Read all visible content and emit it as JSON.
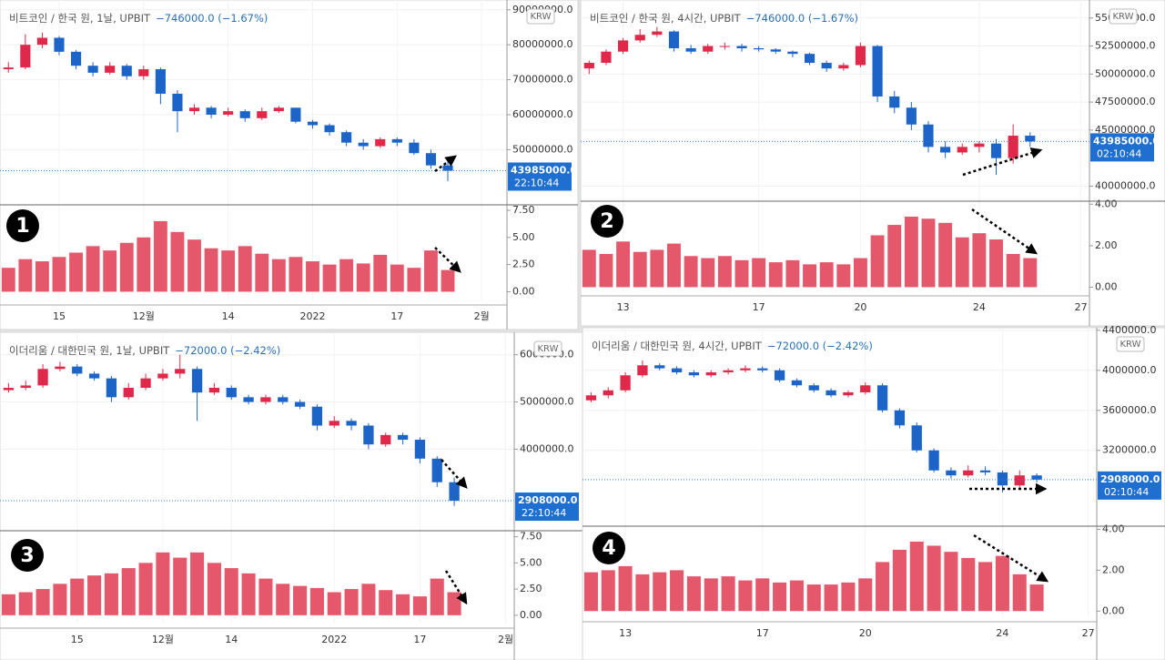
{
  "chart_data": [
    {
      "type": "candlestick",
      "title": "비트코인 / 한국 원, 1날, UPBIT",
      "change": "−746000.0 (−1.67%)",
      "badge": "1",
      "currency": "KRW",
      "timer": "22:10:44",
      "colors": {
        "up": "#e0294a",
        "down": "#1c64c8",
        "volume": "#e5586c"
      },
      "categories": [
        null,
        null,
        null,
        "15",
        null,
        null,
        null,
        null,
        "12월",
        null,
        null,
        null,
        null,
        "14",
        null,
        null,
        null,
        null,
        "2022",
        null,
        null,
        null,
        null,
        "17",
        null,
        null,
        null,
        null,
        "2월",
        null
      ],
      "open": [
        73000000.0,
        73500000.0,
        80000000.0,
        82000000.0,
        78000000.0,
        74000000.0,
        72000000.0,
        74000000.0,
        71000000.0,
        73000000.0,
        66000000.0,
        61000000.0,
        62000000.0,
        60000000.0,
        61000000.0,
        59000000.0,
        61000000.0,
        62000000.0,
        58000000.0,
        57000000.0,
        55000000.0,
        52000000.0,
        51000000.0,
        53000000.0,
        52000000.0,
        49000000.0,
        45500000.0,
        null,
        null,
        null
      ],
      "high": [
        75000000.0,
        83000000.0,
        83500000.0,
        82500000.0,
        78500000.0,
        75000000.0,
        75000000.0,
        74500000.0,
        74000000.0,
        73500000.0,
        67000000.0,
        63000000.0,
        62500000.0,
        62000000.0,
        61500000.0,
        62000000.0,
        62500000.0,
        62000000.0,
        58500000.0,
        57500000.0,
        55500000.0,
        53000000.0,
        53500000.0,
        53500000.0,
        53000000.0,
        50000000.0,
        47000000.0,
        null,
        null,
        null
      ],
      "low": [
        72000000.0,
        73000000.0,
        79000000.0,
        77000000.0,
        73000000.0,
        71000000.0,
        71500000.0,
        70000000.0,
        70000000.0,
        63000000.0,
        55000000.0,
        60000000.0,
        59000000.0,
        59500000.0,
        58000000.0,
        58500000.0,
        60500000.0,
        57500000.0,
        56000000.0,
        54000000.0,
        51000000.0,
        50000000.0,
        50500000.0,
        51000000.0,
        48500000.0,
        44500000.0,
        41000000.0,
        null,
        null,
        null
      ],
      "close": [
        73500000.0,
        80000000.0,
        82000000.0,
        78000000.0,
        74000000.0,
        72000000.0,
        74000000.0,
        71000000.0,
        73000000.0,
        66000000.0,
        61000000.0,
        62000000.0,
        60000000.0,
        61000000.0,
        59000000.0,
        61000000.0,
        62000000.0,
        58000000.0,
        57000000.0,
        55000000.0,
        52000000.0,
        51000000.0,
        53000000.0,
        52000000.0,
        49000000.0,
        45500000.0,
        43985000.0,
        null,
        null,
        null
      ],
      "ylim": [
        35000000,
        91500000
      ],
      "yticks": [
        {
          "value": 50000000,
          "label": "50000000.0"
        },
        {
          "value": 60000000,
          "label": "60000000.0"
        },
        {
          "value": 70000000,
          "label": "70000000.0"
        },
        {
          "value": 80000000,
          "label": "80000000.0"
        },
        {
          "value": 90000000,
          "label": "90000000.0"
        }
      ],
      "last_price": {
        "value": 43985000,
        "label": "43985000.0"
      },
      "volume": {
        "values": [
          2.2,
          3.0,
          2.8,
          3.2,
          3.6,
          4.2,
          3.8,
          4.5,
          5.0,
          6.5,
          5.5,
          4.8,
          4.0,
          3.8,
          4.2,
          3.5,
          3.0,
          3.2,
          2.8,
          2.5,
          3.0,
          2.6,
          3.4,
          2.5,
          2.2,
          3.8,
          2.0,
          null,
          null,
          null
        ],
        "ylim": [
          -0.8,
          8
        ],
        "yticks": [
          {
            "value": 0,
            "label": "0.00"
          },
          {
            "value": 2.5,
            "label": "2.50"
          },
          {
            "value": 5,
            "label": "5.00"
          },
          {
            "value": 7.5,
            "label": "7.50"
          }
        ]
      }
    },
    {
      "type": "candlestick",
      "title": "비트코인 / 한국 원, 4시간, UPBIT",
      "change": "−746000.0 (−1.67%)",
      "badge": "2",
      "currency": "KRW",
      "timer": "02:10:44",
      "colors": {
        "up": "#e0294a",
        "down": "#1c64c8",
        "volume": "#e5586c"
      },
      "categories": [
        null,
        null,
        "13",
        null,
        null,
        null,
        null,
        null,
        null,
        null,
        "17",
        null,
        null,
        null,
        null,
        null,
        "20",
        null,
        null,
        null,
        null,
        null,
        null,
        "24",
        null,
        null,
        null,
        null,
        null,
        "27"
      ],
      "open": [
        50500000.0,
        51000000.0,
        52000000.0,
        53000000.0,
        53500000.0,
        53800000.0,
        52300000.0,
        52000000.0,
        52500000.0,
        52500000.0,
        52300000.0,
        52200000.0,
        52000000.0,
        51800000.0,
        51000000.0,
        50500000.0,
        50800000.0,
        52500000.0,
        48000000.0,
        47000000.0,
        45500000.0,
        43500000.0,
        43000000.0,
        43500000.0,
        43800000.0,
        42500000.0,
        44500000.0,
        null,
        null,
        null
      ],
      "high": [
        51200000.0,
        52200000.0,
        53200000.0,
        54000000.0,
        54200000.0,
        53900000.0,
        52600000.0,
        52700000.0,
        52800000.0,
        52700000.0,
        52500000.0,
        52300000.0,
        52100000.0,
        51900000.0,
        51200000.0,
        51000000.0,
        52800000.0,
        52600000.0,
        48500000.0,
        47500000.0,
        45800000.0,
        44000000.0,
        43800000.0,
        44000000.0,
        44200000.0,
        45500000.0,
        44800000.0,
        null,
        null,
        null
      ],
      "low": [
        50000000.0,
        50800000.0,
        51800000.0,
        52800000.0,
        53300000.0,
        52000000.0,
        51800000.0,
        51800000.0,
        52200000.0,
        52000000.0,
        52000000.0,
        51800000.0,
        51500000.0,
        50800000.0,
        50200000.0,
        50300000.0,
        50600000.0,
        47500000.0,
        46500000.0,
        45000000.0,
        43000000.0,
        42500000.0,
        42800000.0,
        43000000.0,
        41000000.0,
        42000000.0,
        43500000.0,
        null,
        null,
        null
      ],
      "close": [
        51000000.0,
        52000000.0,
        53000000.0,
        53500000.0,
        53800000.0,
        52300000.0,
        52000000.0,
        52500000.0,
        52500000.0,
        52300000.0,
        52200000.0,
        52000000.0,
        51800000.0,
        51000000.0,
        50500000.0,
        50800000.0,
        52500000.0,
        48000000.0,
        47000000.0,
        45500000.0,
        43500000.0,
        43000000.0,
        43500000.0,
        43800000.0,
        42500000.0,
        44500000.0,
        43985000.0,
        null,
        null,
        null
      ],
      "ylim": [
        38900000,
        56200000
      ],
      "yticks": [
        {
          "value": 40000000,
          "label": "40000000.0"
        },
        {
          "value": 45000000,
          "label": "45000000.0"
        },
        {
          "value": 47500000,
          "label": "47500000.0"
        },
        {
          "value": 50000000,
          "label": "50000000.0"
        },
        {
          "value": 52500000,
          "label": "52500000.0"
        },
        {
          "value": 55000000,
          "label": "55000000.0"
        }
      ],
      "last_price": {
        "value": 43985000,
        "label": "43985000.0"
      },
      "volume": {
        "values": [
          1.8,
          1.6,
          2.2,
          1.7,
          1.8,
          2.1,
          1.5,
          1.4,
          1.5,
          1.3,
          1.4,
          1.2,
          1.3,
          1.1,
          1.2,
          1.1,
          1.4,
          2.5,
          3.0,
          3.4,
          3.3,
          3.1,
          2.4,
          2.6,
          2.3,
          1.6,
          1.4,
          null,
          null,
          null
        ],
        "ylim": [
          -0.2,
          4.1
        ],
        "yticks": [
          {
            "value": 0,
            "label": "0.00"
          },
          {
            "value": 2,
            "label": "2.00"
          },
          {
            "value": 4,
            "label": "4.00"
          }
        ]
      }
    },
    {
      "type": "candlestick",
      "title": "이더리움 / 대한민국 원, 1날, UPBIT",
      "change": "−72000.0 (−2.42%)",
      "badge": "3",
      "currency": "KRW",
      "timer": "22:10:44",
      "colors": {
        "up": "#e0294a",
        "down": "#1c64c8",
        "volume": "#e5586c"
      },
      "categories": [
        null,
        null,
        null,
        null,
        "15",
        null,
        null,
        null,
        null,
        "12월",
        null,
        null,
        null,
        "14",
        null,
        null,
        null,
        null,
        null,
        "2022",
        null,
        null,
        null,
        null,
        "17",
        null,
        null,
        null,
        null,
        "2월"
      ],
      "open": [
        5250000.0,
        5300000.0,
        5350000.0,
        5700000.0,
        5750000.0,
        5600000.0,
        5500000.0,
        5100000.0,
        5300000.0,
        5500000.0,
        5600000.0,
        5700000.0,
        5200000.0,
        5300000.0,
        5100000.0,
        5000000.0,
        5100000.0,
        5000000.0,
        4900000.0,
        4500000.0,
        4600000.0,
        4500000.0,
        4100000.0,
        4300000.0,
        4200000.0,
        3800000.0,
        3300000.0,
        null,
        null,
        null
      ],
      "high": [
        5400000.0,
        5450000.0,
        5800000.0,
        5850000.0,
        5800000.0,
        5650000.0,
        5550000.0,
        5400000.0,
        5600000.0,
        5700000.0,
        6000000.0,
        5750000.0,
        5400000.0,
        5350000.0,
        5150000.0,
        5150000.0,
        5150000.0,
        5050000.0,
        4950000.0,
        4700000.0,
        4650000.0,
        4550000.0,
        4350000.0,
        4350000.0,
        4250000.0,
        3850000.0,
        3400000.0,
        null,
        null,
        null
      ],
      "low": [
        5200000.0,
        5250000.0,
        5300000.0,
        5650000.0,
        5550000.0,
        5450000.0,
        5000000.0,
        5050000.0,
        5250000.0,
        5450000.0,
        5500000.0,
        4600000.0,
        5150000.0,
        5050000.0,
        4950000.0,
        4950000.0,
        4950000.0,
        4850000.0,
        4400000.0,
        4450000.0,
        4400000.0,
        4000000.0,
        4050000.0,
        4100000.0,
        3700000.0,
        3200000.0,
        2800000.0,
        null,
        null,
        null
      ],
      "close": [
        5300000.0,
        5350000.0,
        5700000.0,
        5750000.0,
        5600000.0,
        5500000.0,
        5100000.0,
        5300000.0,
        5500000.0,
        5600000.0,
        5700000.0,
        5200000.0,
        5300000.0,
        5100000.0,
        5000000.0,
        5100000.0,
        5000000.0,
        4900000.0,
        4500000.0,
        4600000.0,
        4500000.0,
        4100000.0,
        4300000.0,
        4200000.0,
        3800000.0,
        3300000.0,
        2908000.0,
        null,
        null,
        null
      ],
      "ylim": [
        2330000,
        6380000
      ],
      "yticks": [
        {
          "value": 4000000,
          "label": "4000000.0"
        },
        {
          "value": 5000000,
          "label": "5000000.0"
        },
        {
          "value": 6000000,
          "label": "6000000.0"
        }
      ],
      "last_price": {
        "value": 2908000,
        "label": "2908000.0"
      },
      "volume": {
        "values": [
          2.0,
          2.2,
          2.5,
          3.0,
          3.5,
          3.8,
          4.0,
          4.5,
          5.0,
          6.0,
          5.5,
          6.0,
          5.0,
          4.5,
          4.0,
          3.5,
          3.0,
          2.8,
          2.6,
          2.2,
          2.5,
          3.0,
          2.4,
          2.0,
          1.8,
          3.5,
          2.2,
          null,
          null,
          null
        ],
        "ylim": [
          -0.8,
          7.9
        ],
        "yticks": [
          {
            "value": 0,
            "label": "0.00"
          },
          {
            "value": 2.5,
            "label": "2.50"
          },
          {
            "value": 5,
            "label": "5.00"
          },
          {
            "value": 7.5,
            "label": "7.50"
          }
        ]
      }
    },
    {
      "type": "candlestick",
      "title": "이더리움 / 대한민국 원, 4시간, UPBIT",
      "change": "−72000.0 (−2.42%)",
      "badge": "4",
      "currency": "KRW",
      "timer": "02:10:44",
      "colors": {
        "up": "#e0294a",
        "down": "#1c64c8",
        "volume": "#e5586c"
      },
      "categories": [
        null,
        null,
        "13",
        null,
        null,
        null,
        null,
        null,
        null,
        null,
        "17",
        null,
        null,
        null,
        null,
        null,
        "20",
        null,
        null,
        null,
        null,
        null,
        null,
        null,
        "24",
        null,
        null,
        null,
        null,
        "27"
      ],
      "open": [
        3700000.0,
        3750000.0,
        3800000.0,
        3950000.0,
        4050000.0,
        4020000.0,
        3980000.0,
        3950000.0,
        3980000.0,
        4000000.0,
        4020000.0,
        4000000.0,
        3900000.0,
        3850000.0,
        3800000.0,
        3750000.0,
        3780000.0,
        3850000.0,
        3600000.0,
        3450000.0,
        3200000.0,
        3000000.0,
        2950000.0,
        3000000.0,
        2980000.0,
        2850000.0,
        2950000.0,
        null,
        null,
        null
      ],
      "high": [
        3780000.0,
        3830000.0,
        3980000.0,
        4100000.0,
        4070000.0,
        4040000.0,
        4000000.0,
        4000000.0,
        4020000.0,
        4050000.0,
        4040000.0,
        4020000.0,
        3920000.0,
        3870000.0,
        3820000.0,
        3800000.0,
        3880000.0,
        3870000.0,
        3620000.0,
        3480000.0,
        3220000.0,
        3030000.0,
        3050000.0,
        3040000.0,
        3000000.0,
        3000000.0,
        2970000.0,
        null,
        null,
        null
      ],
      "low": [
        3680000.0,
        3720000.0,
        3780000.0,
        3930000.0,
        4000000.0,
        3960000.0,
        3930000.0,
        3930000.0,
        3960000.0,
        3980000.0,
        3980000.0,
        3880000.0,
        3830000.0,
        3780000.0,
        3730000.0,
        3730000.0,
        3760000.0,
        3580000.0,
        3420000.0,
        3180000.0,
        2980000.0,
        2920000.0,
        2930000.0,
        2950000.0,
        2780000.0,
        2820000.0,
        2880000.0,
        null,
        null,
        null
      ],
      "close": [
        3750000.0,
        3800000.0,
        3950000.0,
        4050000.0,
        4020000.0,
        3980000.0,
        3950000.0,
        3980000.0,
        4000000.0,
        4020000.0,
        4000000.0,
        3900000.0,
        3850000.0,
        3800000.0,
        3750000.0,
        3780000.0,
        3850000.0,
        3600000.0,
        3450000.0,
        3200000.0,
        3000000.0,
        2950000.0,
        3000000.0,
        2980000.0,
        2850000.0,
        2950000.0,
        2908000.0,
        null,
        null,
        null
      ],
      "ylim": [
        2470000,
        4380000
      ],
      "yticks": [
        {
          "value": 3200000,
          "label": "3200000.0"
        },
        {
          "value": 3600000,
          "label": "3600000.0"
        },
        {
          "value": 4000000,
          "label": "4000000.0"
        },
        {
          "value": 4400000,
          "label": "4400000.0"
        }
      ],
      "last_price": {
        "value": 2908000,
        "label": "2908000.0"
      },
      "volume": {
        "values": [
          1.9,
          2.0,
          2.2,
          1.8,
          1.9,
          2.0,
          1.7,
          1.6,
          1.7,
          1.5,
          1.6,
          1.4,
          1.5,
          1.3,
          1.3,
          1.4,
          1.6,
          2.4,
          3.0,
          3.4,
          3.2,
          2.9,
          2.6,
          2.4,
          2.7,
          1.8,
          1.3,
          null,
          null,
          null
        ],
        "ylim": [
          -0.3,
          4.2
        ],
        "yticks": [
          {
            "value": 0,
            "label": "0.00"
          },
          {
            "value": 2,
            "label": "2.00"
          },
          {
            "value": 4,
            "label": "4.00"
          }
        ]
      }
    }
  ]
}
